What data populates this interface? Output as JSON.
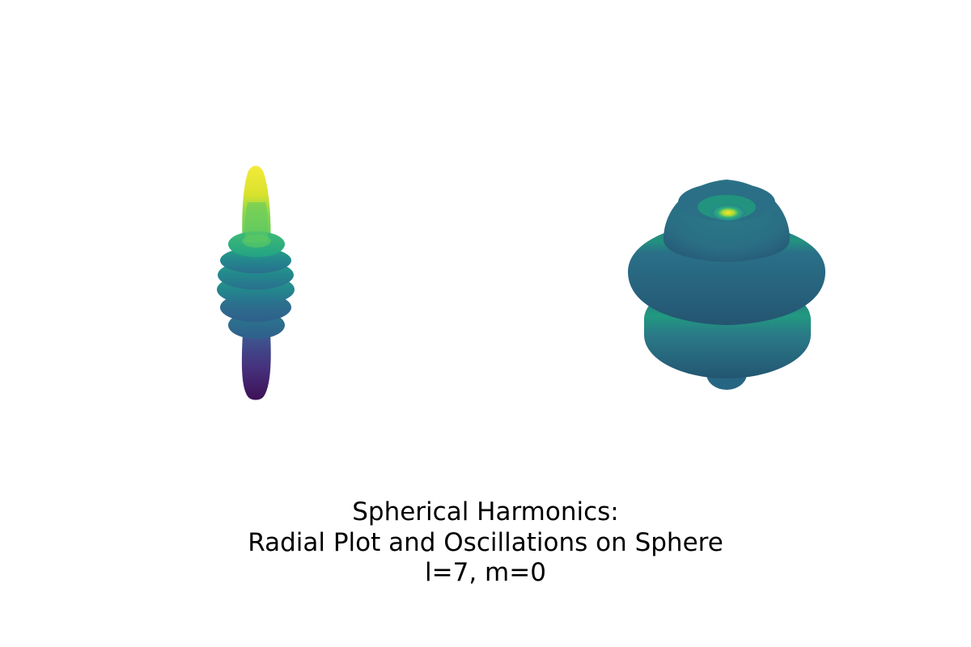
{
  "chart_data": [
    {
      "type": "surface",
      "description_kind": "radial-plot",
      "harmonic": {
        "l": 7,
        "m": 0
      },
      "colormap": "viridis",
      "colormap_stops": [
        "#440154",
        "#46327e",
        "#365c8d",
        "#277f8e",
        "#1fa187",
        "#4ac16d",
        "#a0da39",
        "#fde725"
      ],
      "axes_visible": false
    },
    {
      "type": "surface",
      "description_kind": "oscillations-on-sphere",
      "harmonic": {
        "l": 7,
        "m": 0
      },
      "colormap": "viridis",
      "colormap_stops": [
        "#440154",
        "#46327e",
        "#365c8d",
        "#277f8e",
        "#1fa187",
        "#4ac16d",
        "#a0da39",
        "#fde725"
      ],
      "axes_visible": false
    }
  ],
  "title_lines": [
    "Spherical Harmonics:",
    "Radial Plot and Oscillations on Sphere",
    "l=7, m=0"
  ]
}
